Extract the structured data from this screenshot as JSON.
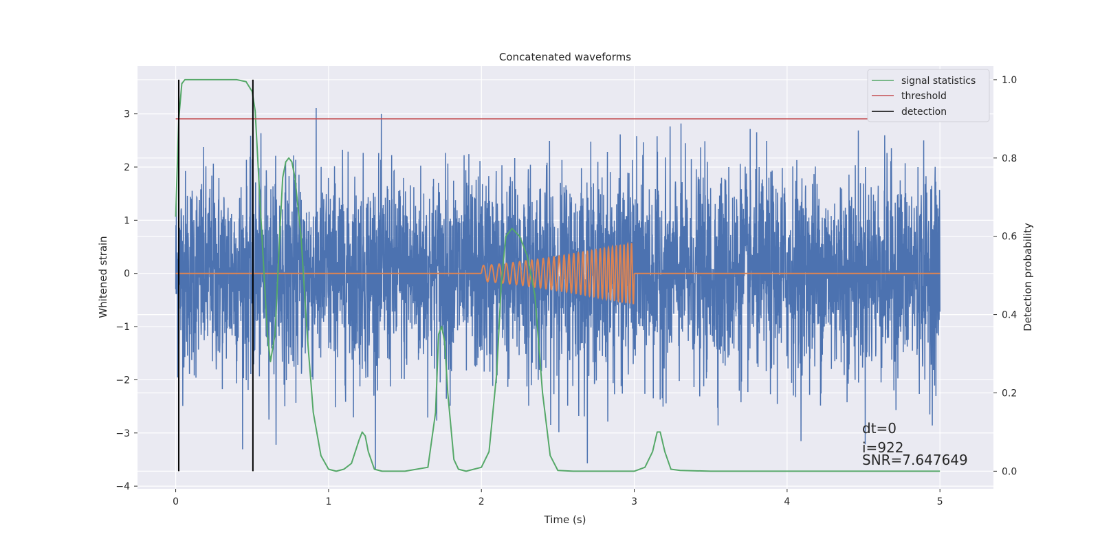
{
  "chart_data": {
    "type": "line",
    "title": "Concatenated waveforms",
    "xlabel": "Time (s)",
    "ylabel": "Whitened strain",
    "y2label": "Detection probability",
    "xlim": [
      -0.25,
      5.35
    ],
    "ylim": [
      -4.05,
      3.9
    ],
    "y2lim": [
      -0.045,
      1.035
    ],
    "x_ticks": [
      0,
      1,
      2,
      3,
      4,
      5
    ],
    "y_ticks": [
      -4,
      -3,
      -2,
      -1,
      0,
      1,
      2,
      3
    ],
    "y2_ticks": [
      0.0,
      0.2,
      0.4,
      0.6,
      0.8,
      1.0
    ],
    "x_tick_labels": [
      "0",
      "1",
      "2",
      "3",
      "4",
      "5"
    ],
    "y_tick_labels": [
      "−4",
      "−3",
      "−2",
      "−1",
      "0",
      "1",
      "2",
      "3"
    ],
    "y2_tick_labels": [
      "0.0",
      "0.2",
      "0.4",
      "0.6",
      "0.8",
      "1.0"
    ],
    "grid": true,
    "legend_position": "top-right",
    "colors": {
      "background": "#eaeaf2",
      "grid": "#ffffff",
      "strain": "#4c72b0",
      "injection": "#dd8452",
      "signal_statistics": "#55a868",
      "threshold": "#c44e52",
      "detection": "#000000"
    },
    "series": [
      {
        "name": "",
        "axis": "left",
        "kind": "noise",
        "x_range": [
          0,
          5
        ],
        "amplitude_range": [
          -3.7,
          3.3
        ]
      },
      {
        "name": "",
        "axis": "left",
        "kind": "chirp",
        "x_range": [
          2.0,
          3.0
        ],
        "amplitude_start": 0.15,
        "amplitude_end": 0.58,
        "baseline": 0
      },
      {
        "name": "signal statistics",
        "axis": "right",
        "x": [
          0.0,
          0.02,
          0.04,
          0.06,
          0.1,
          0.2,
          0.3,
          0.4,
          0.46,
          0.5,
          0.52,
          0.55,
          0.6,
          0.62,
          0.65,
          0.68,
          0.7,
          0.72,
          0.74,
          0.76,
          0.78,
          0.82,
          0.86,
          0.9,
          0.95,
          1.0,
          1.05,
          1.1,
          1.15,
          1.2,
          1.22,
          1.24,
          1.26,
          1.3,
          1.35,
          1.5,
          1.65,
          1.7,
          1.72,
          1.74,
          1.76,
          1.78,
          1.82,
          1.85,
          1.9,
          2.0,
          2.05,
          2.1,
          2.13,
          2.16,
          2.2,
          2.25,
          2.3,
          2.35,
          2.4,
          2.45,
          2.5,
          2.6,
          2.8,
          3.0,
          3.07,
          3.12,
          3.15,
          3.17,
          3.2,
          3.24,
          3.3,
          3.5,
          4.0,
          5.0
        ],
        "y": [
          0.65,
          0.9,
          0.99,
          1.0,
          1.0,
          1.0,
          1.0,
          1.0,
          0.995,
          0.97,
          0.92,
          0.7,
          0.35,
          0.28,
          0.35,
          0.6,
          0.75,
          0.79,
          0.8,
          0.79,
          0.75,
          0.6,
          0.35,
          0.15,
          0.04,
          0.005,
          0.0,
          0.005,
          0.02,
          0.08,
          0.1,
          0.09,
          0.05,
          0.005,
          0.0,
          0.0,
          0.01,
          0.15,
          0.35,
          0.37,
          0.33,
          0.2,
          0.03,
          0.005,
          0.0,
          0.01,
          0.05,
          0.25,
          0.48,
          0.6,
          0.62,
          0.6,
          0.55,
          0.45,
          0.2,
          0.04,
          0.002,
          0.0,
          0.0,
          0.0,
          0.01,
          0.05,
          0.1,
          0.1,
          0.05,
          0.005,
          0.002,
          0.0,
          0.0,
          0.0
        ]
      },
      {
        "name": "threshold",
        "axis": "right",
        "x": [
          0,
          5.1
        ],
        "y": [
          0.9,
          0.9
        ]
      },
      {
        "name": "detection",
        "axis": "right",
        "kind": "vlines",
        "x": [
          0.02,
          0.505
        ],
        "y_range": [
          0.0,
          1.0
        ]
      }
    ],
    "legend_entries": [
      "signal statistics",
      "threshold",
      "detection"
    ],
    "annotations": [
      "dt=0",
      "i=922",
      "SNR=7.647649"
    ]
  }
}
